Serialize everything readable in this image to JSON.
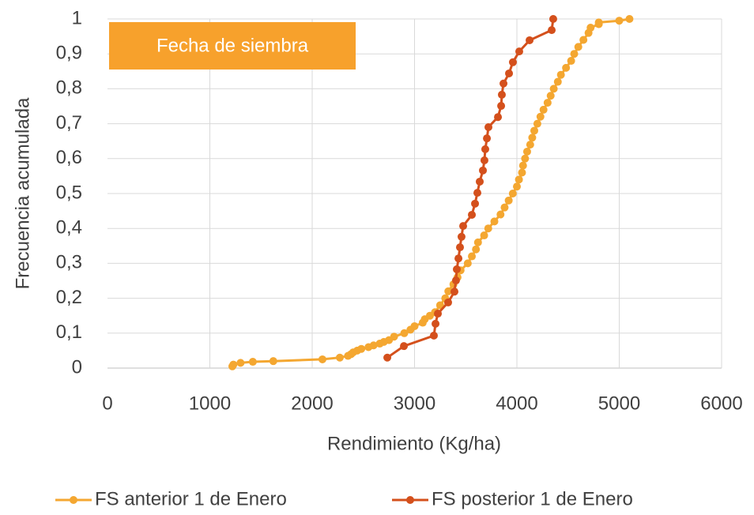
{
  "chart_data": {
    "type": "line",
    "xlabel": "Rendimiento (Kg/ha)",
    "ylabel": "Frecuencia acumulada",
    "annotation": "Fecha de siembra",
    "xlim": [
      0,
      6000
    ],
    "xticks": [
      0,
      1000,
      2000,
      3000,
      4000,
      5000,
      6000
    ],
    "ylim": [
      0,
      1
    ],
    "yticks": [
      0,
      {
        "value": 0.1,
        "label": "0,1"
      },
      {
        "value": 0.2,
        "label": "0,2"
      },
      {
        "value": 0.3,
        "label": "0,3"
      },
      {
        "value": 0.4,
        "label": "0,4"
      },
      {
        "value": 0.5,
        "label": "0,5"
      },
      {
        "value": 0.6,
        "label": "0,6"
      },
      {
        "value": 0.7,
        "label": "0,7"
      },
      {
        "value": 0.8,
        "label": "0,8"
      },
      {
        "value": 0.9,
        "label": "0,9"
      },
      1
    ],
    "grid": true,
    "legend": "bottom",
    "series": [
      {
        "name": "FS anterior 1 de Enero",
        "color": "#f4a731",
        "x": [
          1220,
          1230,
          1300,
          1420,
          1620,
          2100,
          2270,
          2350,
          2380,
          2400,
          2440,
          2480,
          2550,
          2600,
          2660,
          2700,
          2750,
          2800,
          2900,
          2960,
          3000,
          3080,
          3100,
          3150,
          3200,
          3250,
          3300,
          3330,
          3380,
          3420,
          3450,
          3520,
          3560,
          3600,
          3620,
          3680,
          3720,
          3780,
          3840,
          3880,
          3920,
          3960,
          4000,
          4020,
          4050,
          4060,
          4080,
          4100,
          4130,
          4150,
          4170,
          4200,
          4230,
          4260,
          4300,
          4330,
          4360,
          4400,
          4430,
          4480,
          4530,
          4560,
          4600,
          4650,
          4700,
          4720,
          4800,
          4800,
          5000,
          5100
        ],
        "values": [
          0.005,
          0.01,
          0.015,
          0.018,
          0.02,
          0.025,
          0.03,
          0.035,
          0.04,
          0.045,
          0.05,
          0.055,
          0.06,
          0.065,
          0.07,
          0.075,
          0.08,
          0.09,
          0.1,
          0.11,
          0.12,
          0.13,
          0.14,
          0.15,
          0.16,
          0.18,
          0.2,
          0.22,
          0.24,
          0.26,
          0.28,
          0.3,
          0.32,
          0.34,
          0.36,
          0.38,
          0.4,
          0.42,
          0.44,
          0.46,
          0.48,
          0.5,
          0.52,
          0.54,
          0.56,
          0.58,
          0.6,
          0.62,
          0.64,
          0.66,
          0.68,
          0.7,
          0.72,
          0.74,
          0.76,
          0.78,
          0.8,
          0.82,
          0.84,
          0.86,
          0.88,
          0.9,
          0.92,
          0.94,
          0.96,
          0.975,
          0.985,
          0.99,
          0.995,
          1.0
        ]
      },
      {
        "name": "FS posterior 1 de Enero",
        "color": "#d4501c",
        "x": [
          2734,
          2896,
          3189,
          3205,
          3228,
          3328,
          3390,
          3405,
          3413,
          3429,
          3444,
          3459,
          3475,
          3560,
          3591,
          3614,
          3637,
          3668,
          3683,
          3691,
          3707,
          3722,
          3815,
          3846,
          3853,
          3869,
          3923,
          3961,
          4023,
          4124,
          4340,
          4355
        ],
        "values": [
          0.03,
          0.063,
          0.093,
          0.127,
          0.156,
          0.188,
          0.219,
          0.251,
          0.283,
          0.314,
          0.346,
          0.376,
          0.407,
          0.439,
          0.471,
          0.502,
          0.534,
          0.566,
          0.595,
          0.627,
          0.658,
          0.69,
          0.719,
          0.751,
          0.783,
          0.815,
          0.844,
          0.876,
          0.907,
          0.939,
          0.968,
          1.0
        ]
      }
    ]
  }
}
